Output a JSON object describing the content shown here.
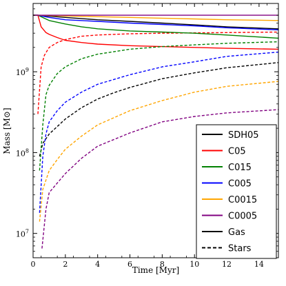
{
  "chart_data": {
    "type": "line",
    "title": "",
    "xlabel": "Time [Myr]",
    "ylabel": "Mass [M⊙]",
    "xlim": [
      0,
      15.2
    ],
    "ylim": [
      5000000,
      7000000000
    ],
    "yscale": "log",
    "x_ticks": [
      0,
      2,
      4,
      6,
      8,
      10,
      12,
      14
    ],
    "y_ticks": [
      {
        "value": 10000000,
        "base": "10",
        "exp": "7"
      },
      {
        "value": 100000000,
        "base": "10",
        "exp": "8"
      },
      {
        "value": 1000000000,
        "base": "10",
        "exp": "9"
      }
    ],
    "grid": false,
    "legend_position": "lower-right",
    "legend": [
      {
        "label": "SDH05",
        "color": "#000000",
        "style": "solid"
      },
      {
        "label": "C05",
        "color": "#ff0000",
        "style": "solid"
      },
      {
        "label": "C015",
        "color": "#008000",
        "style": "solid"
      },
      {
        "label": "C005",
        "color": "#0000ff",
        "style": "solid"
      },
      {
        "label": "C0015",
        "color": "#ffa500",
        "style": "solid"
      },
      {
        "label": "C0005",
        "color": "#800080",
        "style": "solid"
      },
      {
        "label": "Gas",
        "color": "#000000",
        "style": "solid"
      },
      {
        "label": "Stars",
        "color": "#000000",
        "style": "dashed"
      }
    ],
    "series": [
      {
        "name": "SDH05",
        "component": "Gas",
        "color": "#000000",
        "dash": false,
        "x": [
          0,
          0.3,
          2,
          4,
          6,
          8,
          10,
          12,
          15.2
        ],
        "y": [
          5000000000,
          5000000000,
          4700000000,
          4400000000,
          4200000000,
          4000000000,
          3800000000,
          3600000000,
          3400000000
        ]
      },
      {
        "name": "SDH05",
        "component": "Stars",
        "color": "#000000",
        "dash": true,
        "x": [
          0.4,
          0.6,
          1,
          1.5,
          2,
          3,
          4,
          5,
          6,
          8,
          10,
          12,
          15.2
        ],
        "y": [
          90000000,
          130000000,
          170000000,
          210000000,
          260000000,
          360000000,
          460000000,
          550000000,
          640000000,
          820000000,
          970000000,
          1120000000,
          1300000000
        ]
      },
      {
        "name": "C05",
        "component": "Gas",
        "color": "#ff0000",
        "dash": false,
        "x": [
          0,
          0.3,
          0.5,
          0.8,
          1,
          1.5,
          2,
          3,
          4,
          6,
          8,
          10,
          12,
          15.2
        ],
        "y": [
          5000000000,
          5000000000,
          3600000000,
          3050000000,
          2900000000,
          2650000000,
          2450000000,
          2300000000,
          2200000000,
          2100000000,
          2050000000,
          2000000000,
          1950000000,
          1900000000
        ]
      },
      {
        "name": "C05",
        "component": "Stars",
        "color": "#ff0000",
        "dash": true,
        "x": [
          0.3,
          0.5,
          0.7,
          1,
          1.5,
          2,
          3,
          4,
          6,
          8,
          10,
          12,
          15.2
        ],
        "y": [
          300000000,
          1150000000,
          1600000000,
          2000000000,
          2300000000,
          2500000000,
          2750000000,
          2850000000,
          2950000000,
          3000000000,
          3030000000,
          3050000000,
          3100000000
        ]
      },
      {
        "name": "C015",
        "component": "Gas",
        "color": "#008000",
        "dash": false,
        "x": [
          0,
          0.3,
          1,
          2,
          3,
          4,
          6,
          8,
          10,
          12,
          15.2
        ],
        "y": [
          5000000000,
          5000000000,
          4300000000,
          3900000000,
          3600000000,
          3400000000,
          3200000000,
          3100000000,
          3000000000,
          2850000000,
          2600000000
        ]
      },
      {
        "name": "C015",
        "component": "Stars",
        "color": "#008000",
        "dash": true,
        "x": [
          0.4,
          0.6,
          0.8,
          1,
          1.5,
          2,
          3,
          4,
          6,
          8,
          10,
          12,
          15.2
        ],
        "y": [
          60000000,
          220000000,
          520000000,
          680000000,
          950000000,
          1150000000,
          1450000000,
          1650000000,
          1900000000,
          2050000000,
          2150000000,
          2250000000,
          2350000000
        ]
      },
      {
        "name": "C005",
        "component": "Gas",
        "color": "#0000ff",
        "dash": false,
        "x": [
          0,
          0.3,
          1,
          2,
          4,
          6,
          8,
          10,
          12,
          15.2
        ],
        "y": [
          5000000000,
          5000000000,
          4700000000,
          4400000000,
          4200000000,
          4000000000,
          3850000000,
          3700000000,
          3500000000,
          3300000000
        ]
      },
      {
        "name": "C005",
        "component": "Stars",
        "color": "#0000ff",
        "dash": true,
        "x": [
          0.4,
          0.6,
          0.8,
          1,
          1.5,
          2,
          3,
          4,
          6,
          8,
          10,
          12,
          15.2
        ],
        "y": [
          18000000,
          90000000,
          170000000,
          240000000,
          330000000,
          420000000,
          560000000,
          700000000,
          920000000,
          1150000000,
          1330000000,
          1550000000,
          1750000000
        ]
      },
      {
        "name": "C0015",
        "component": "Gas",
        "color": "#ffa500",
        "dash": false,
        "x": [
          0,
          0.3,
          2,
          4,
          6,
          8,
          10,
          12,
          15.2
        ],
        "y": [
          5000000000,
          5000000000,
          4900000000,
          4800000000,
          4700000000,
          4600000000,
          4500000000,
          4400000000,
          4300000000
        ]
      },
      {
        "name": "C0015",
        "component": "Stars",
        "color": "#ffa500",
        "dash": true,
        "x": [
          0.4,
          0.6,
          1,
          1.5,
          2,
          3,
          4,
          6,
          8,
          10,
          12,
          15.2
        ],
        "y": [
          14000000,
          35000000,
          60000000,
          82000000,
          110000000,
          160000000,
          220000000,
          330000000,
          440000000,
          560000000,
          660000000,
          760000000
        ]
      },
      {
        "name": "C0005",
        "component": "Gas",
        "color": "#800080",
        "dash": false,
        "x": [
          0,
          0.3,
          15.2
        ],
        "y": [
          5000000000,
          5000000000,
          5000000000
        ]
      },
      {
        "name": "C0005",
        "component": "Stars",
        "color": "#800080",
        "dash": true,
        "x": [
          0.55,
          0.8,
          1,
          1.5,
          2,
          3,
          4,
          6,
          8,
          10,
          12,
          15.2
        ],
        "y": [
          6500000,
          20000000,
          32000000,
          42000000,
          55000000,
          85000000,
          120000000,
          175000000,
          240000000,
          280000000,
          310000000,
          340000000
        ]
      }
    ]
  }
}
